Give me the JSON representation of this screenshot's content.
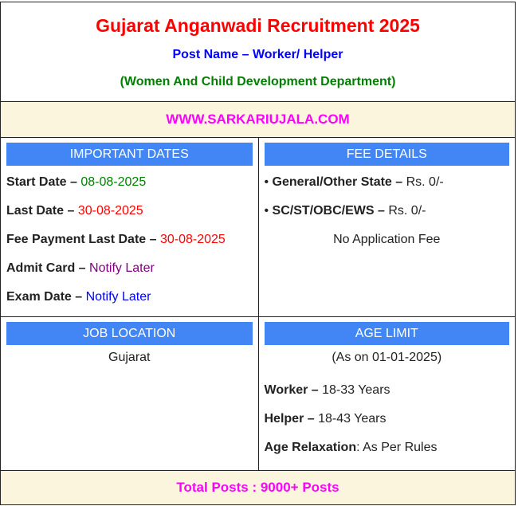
{
  "header": {
    "title": "Gujarat Anganwadi Recruitment 2025",
    "post": "Post Name – Worker/ Helper",
    "dept": "(Women And Child Development Department)"
  },
  "website": "WWW.SARKARIUJALA.COM",
  "dates": {
    "heading": "IMPORTANT DATES",
    "items": [
      {
        "label": "Start Date – ",
        "value": "08-08-2025",
        "color": "#008000"
      },
      {
        "label": "Last Date – ",
        "value": "30-08-2025",
        "color": "#ff0000"
      },
      {
        "label": "Fee Payment Last Date – ",
        "value": "30-08-2025",
        "color": "#ff0000"
      },
      {
        "label": "Admit Card – ",
        "value": "Notify Later",
        "color": "#800080"
      },
      {
        "label": "Exam Date – ",
        "value": "Notify Later",
        "color": "#0000ff"
      }
    ]
  },
  "fee": {
    "heading": "FEE DETAILS",
    "items": [
      {
        "label": "General/Other State – ",
        "value": "Rs. 0/-"
      },
      {
        "label": "SC/ST/OBC/EWS – ",
        "value": "Rs.  0/-"
      }
    ],
    "note": "No Application Fee"
  },
  "location": {
    "heading": "JOB LOCATION",
    "value": "Gujarat"
  },
  "age": {
    "heading": "AGE LIMIT",
    "asOn": "(As on 01-01-2025)",
    "items": [
      {
        "label": "Worker – ",
        "value": "18-33 Years"
      },
      {
        "label": "Helper – ",
        "value": "18-43 Years"
      },
      {
        "label": "Age Relaxation",
        "value": ": As Per Rules"
      }
    ]
  },
  "total": "Total Posts : 9000+ Posts",
  "colors": {
    "bar": "#4285f4",
    "beige": "#faf5dc"
  }
}
